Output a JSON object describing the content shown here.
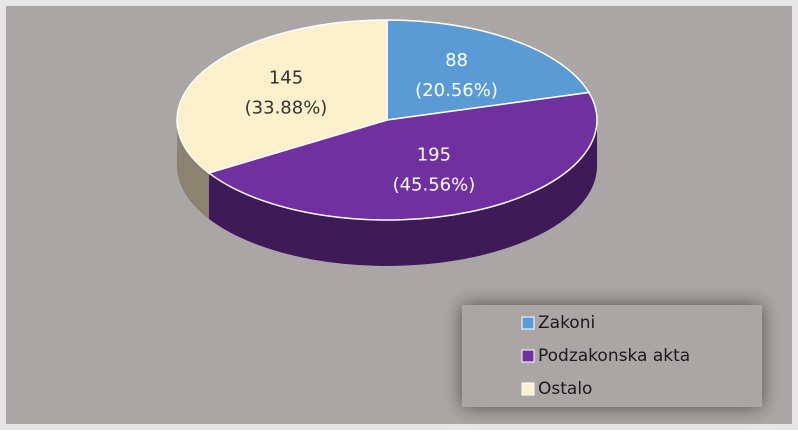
{
  "chart_data": {
    "type": "pie3d",
    "categories": [
      "Zakoni",
      "Podzakonska akta",
      "Ostalo"
    ],
    "values": [
      88,
      195,
      145
    ],
    "percent_labels": [
      "(20.56%)",
      "(45.56%)",
      "(33.88%)"
    ],
    "colors": [
      "#5b9bd5",
      "#7030a0",
      "#fcefcb"
    ],
    "legend": "bottom-right"
  }
}
